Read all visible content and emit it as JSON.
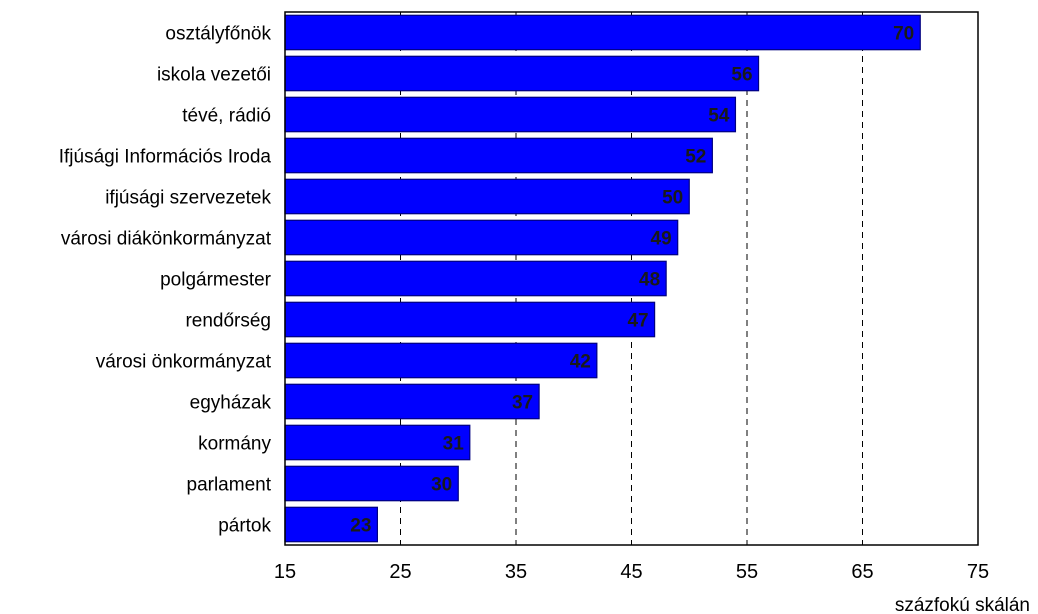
{
  "chart_data": {
    "type": "bar",
    "orientation": "horizontal",
    "categories": [
      "osztályfőnök",
      "iskola vezetői",
      "tévé, rádió",
      "Ifjúsági Információs Iroda",
      "ifjúsági szervezetek",
      "városi diákönkormányzat",
      "polgármester",
      "rendőrség",
      "városi önkormányzat",
      "egyházak",
      "kormány",
      "parlament",
      "pártok"
    ],
    "values": [
      70,
      56,
      54,
      52,
      50,
      49,
      48,
      47,
      42,
      37,
      31,
      30,
      23
    ],
    "value_labels": [
      "70",
      "56",
      "54",
      "52",
      "50",
      "49",
      "48",
      "47",
      "42",
      "37",
      "31",
      "30",
      "23"
    ],
    "xlim": [
      15,
      75
    ],
    "xticks": [
      15,
      25,
      35,
      45,
      55,
      65,
      75
    ],
    "xtick_labels": [
      "15",
      "25",
      "35",
      "45",
      "55",
      "65",
      "75"
    ],
    "xlabel": "százfokú skálán",
    "grid": "vertical dashed",
    "bar_color": "#0000ff",
    "bar_edge_color": "#000080",
    "value_label_color": "#1a1a1a"
  }
}
